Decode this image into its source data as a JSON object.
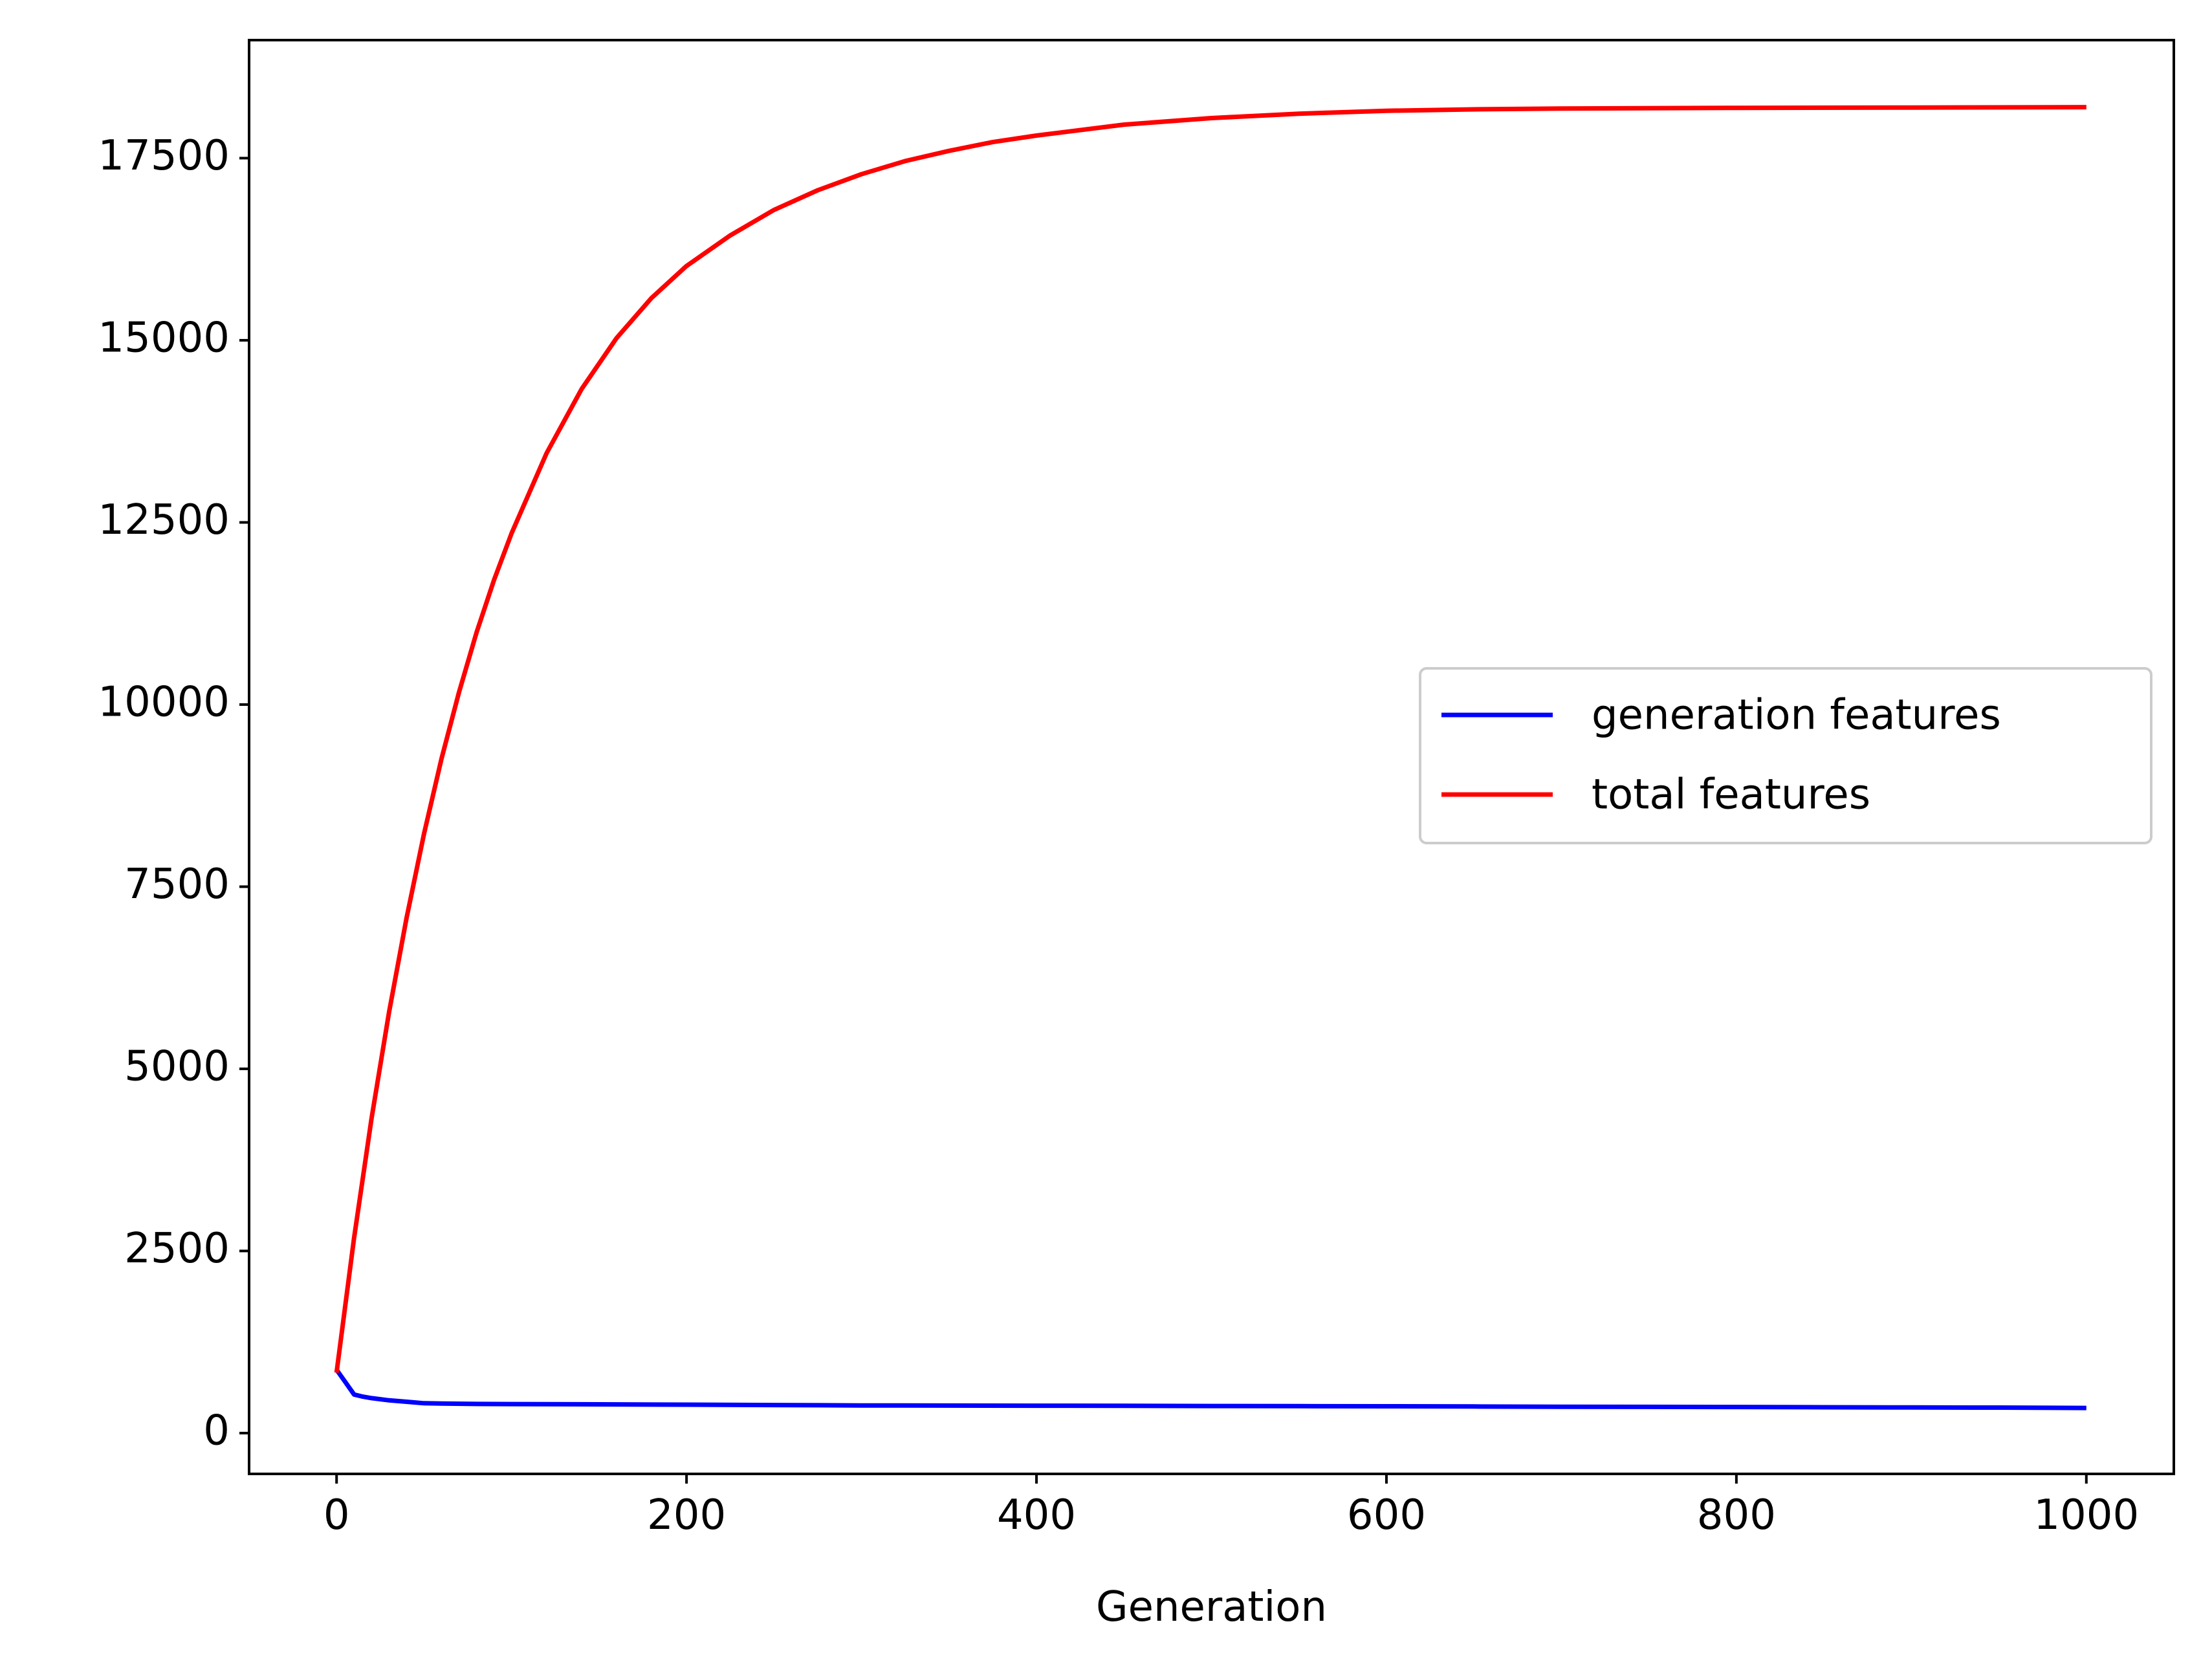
{
  "chart_data": {
    "type": "line",
    "title": "",
    "xlabel": "Generation",
    "ylabel": "",
    "xlim": [
      -50,
      1050
    ],
    "ylim": [
      -560,
      19120
    ],
    "xticks": [
      0,
      200,
      400,
      600,
      800,
      1000
    ],
    "xtick_labels": [
      "0",
      "200",
      "400",
      "600",
      "800",
      "1000"
    ],
    "yticks": [
      0,
      2500,
      5000,
      7500,
      10000,
      12500,
      15000,
      17500
    ],
    "ytick_labels": [
      "0",
      "2500",
      "5000",
      "7500",
      "10000",
      "12500",
      "15000",
      "17500"
    ],
    "grid": false,
    "legend_position": "center-right",
    "series": [
      {
        "name": "generation features",
        "color": "#0000ff",
        "x": [
          0,
          5,
          10,
          15,
          20,
          30,
          40,
          50,
          60,
          80,
          100,
          150,
          200,
          250,
          300,
          350,
          400,
          450,
          500,
          550,
          600,
          650,
          700,
          750,
          800,
          850,
          900,
          950,
          1000
        ],
        "values": [
          870,
          700,
          530,
          500,
          480,
          450,
          430,
          410,
          405,
          400,
          398,
          395,
          390,
          385,
          380,
          378,
          376,
          374,
          372,
          370,
          368,
          365,
          362,
          360,
          358,
          355,
          352,
          350,
          345
        ]
      },
      {
        "name": "total features",
        "color": "#ff0000",
        "x": [
          0,
          10,
          20,
          30,
          40,
          50,
          60,
          70,
          80,
          90,
          100,
          120,
          140,
          160,
          180,
          200,
          225,
          250,
          275,
          300,
          325,
          350,
          375,
          400,
          450,
          500,
          550,
          600,
          650,
          700,
          800,
          900,
          1000
        ],
        "values": [
          830,
          2680,
          4320,
          5780,
          7070,
          8230,
          9260,
          10170,
          10990,
          11710,
          12350,
          13450,
          14330,
          15030,
          15580,
          16020,
          16440,
          16790,
          17060,
          17280,
          17460,
          17600,
          17720,
          17810,
          17960,
          18050,
          18110,
          18150,
          18170,
          18180,
          18190,
          18195,
          18200
        ]
      }
    ]
  }
}
